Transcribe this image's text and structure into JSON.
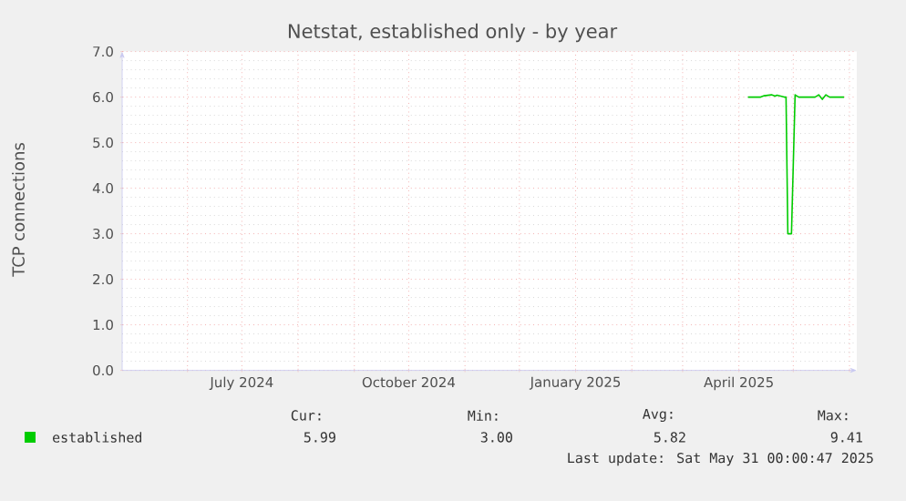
{
  "chart_data": {
    "type": "line",
    "title": "Netstat, established only - by year",
    "ylabel": "TCP connections",
    "x": [
      "2025-04-06",
      "2025-04-13",
      "2025-04-15",
      "2025-04-19",
      "2025-04-21",
      "2025-04-22",
      "2025-04-26",
      "2025-04-27",
      "2025-04-28",
      "2025-04-30",
      "2025-05-02",
      "2025-05-04",
      "2025-05-13",
      "2025-05-15",
      "2025-05-17",
      "2025-05-19",
      "2025-05-21",
      "2025-05-29"
    ],
    "series": [
      {
        "name": "established",
        "color": "#00cc00",
        "values": [
          6.0,
          6.0,
          6.03,
          6.05,
          6.02,
          6.04,
          6.0,
          6.0,
          3.0,
          3.0,
          6.05,
          6.0,
          6.0,
          6.05,
          5.95,
          6.05,
          6.0,
          6.0
        ]
      }
    ],
    "xlim": [
      "2024-04-26",
      "2025-06-05"
    ],
    "xticks": [
      {
        "value": "2024-06-01",
        "label": null
      },
      {
        "value": "2024-07-01",
        "label": "July 2024"
      },
      {
        "value": "2024-08-01",
        "label": null
      },
      {
        "value": "2024-09-01",
        "label": null
      },
      {
        "value": "2024-10-01",
        "label": "October 2024"
      },
      {
        "value": "2024-11-01",
        "label": null
      },
      {
        "value": "2024-12-01",
        "label": null
      },
      {
        "value": "2025-01-01",
        "label": "January 2025"
      },
      {
        "value": "2025-02-01",
        "label": null
      },
      {
        "value": "2025-03-01",
        "label": null
      },
      {
        "value": "2025-04-01",
        "label": "April 2025"
      },
      {
        "value": "2025-05-01",
        "label": null
      },
      {
        "value": "2025-06-01",
        "label": null
      }
    ],
    "ylim": [
      0,
      7
    ],
    "yticks": [
      {
        "value": 0,
        "label": "0.0"
      },
      {
        "value": 1,
        "label": "1.0"
      },
      {
        "value": 2,
        "label": "2.0"
      },
      {
        "value": 3,
        "label": "3.0"
      },
      {
        "value": 4,
        "label": "4.0"
      },
      {
        "value": 5,
        "label": "5.0"
      },
      {
        "value": 6,
        "label": "6.0"
      },
      {
        "value": 7,
        "label": "7.0"
      }
    ],
    "grid": true,
    "legend": "bottom",
    "marker": "none",
    "line_style": "solid",
    "annotations": [
      "Cur:",
      "Min:",
      "Avg:",
      "Max:",
      "5.99",
      "3.00",
      "5.82",
      "9.41",
      "Last update: Sat May 31 00:00:47 2025"
    ]
  }
}
